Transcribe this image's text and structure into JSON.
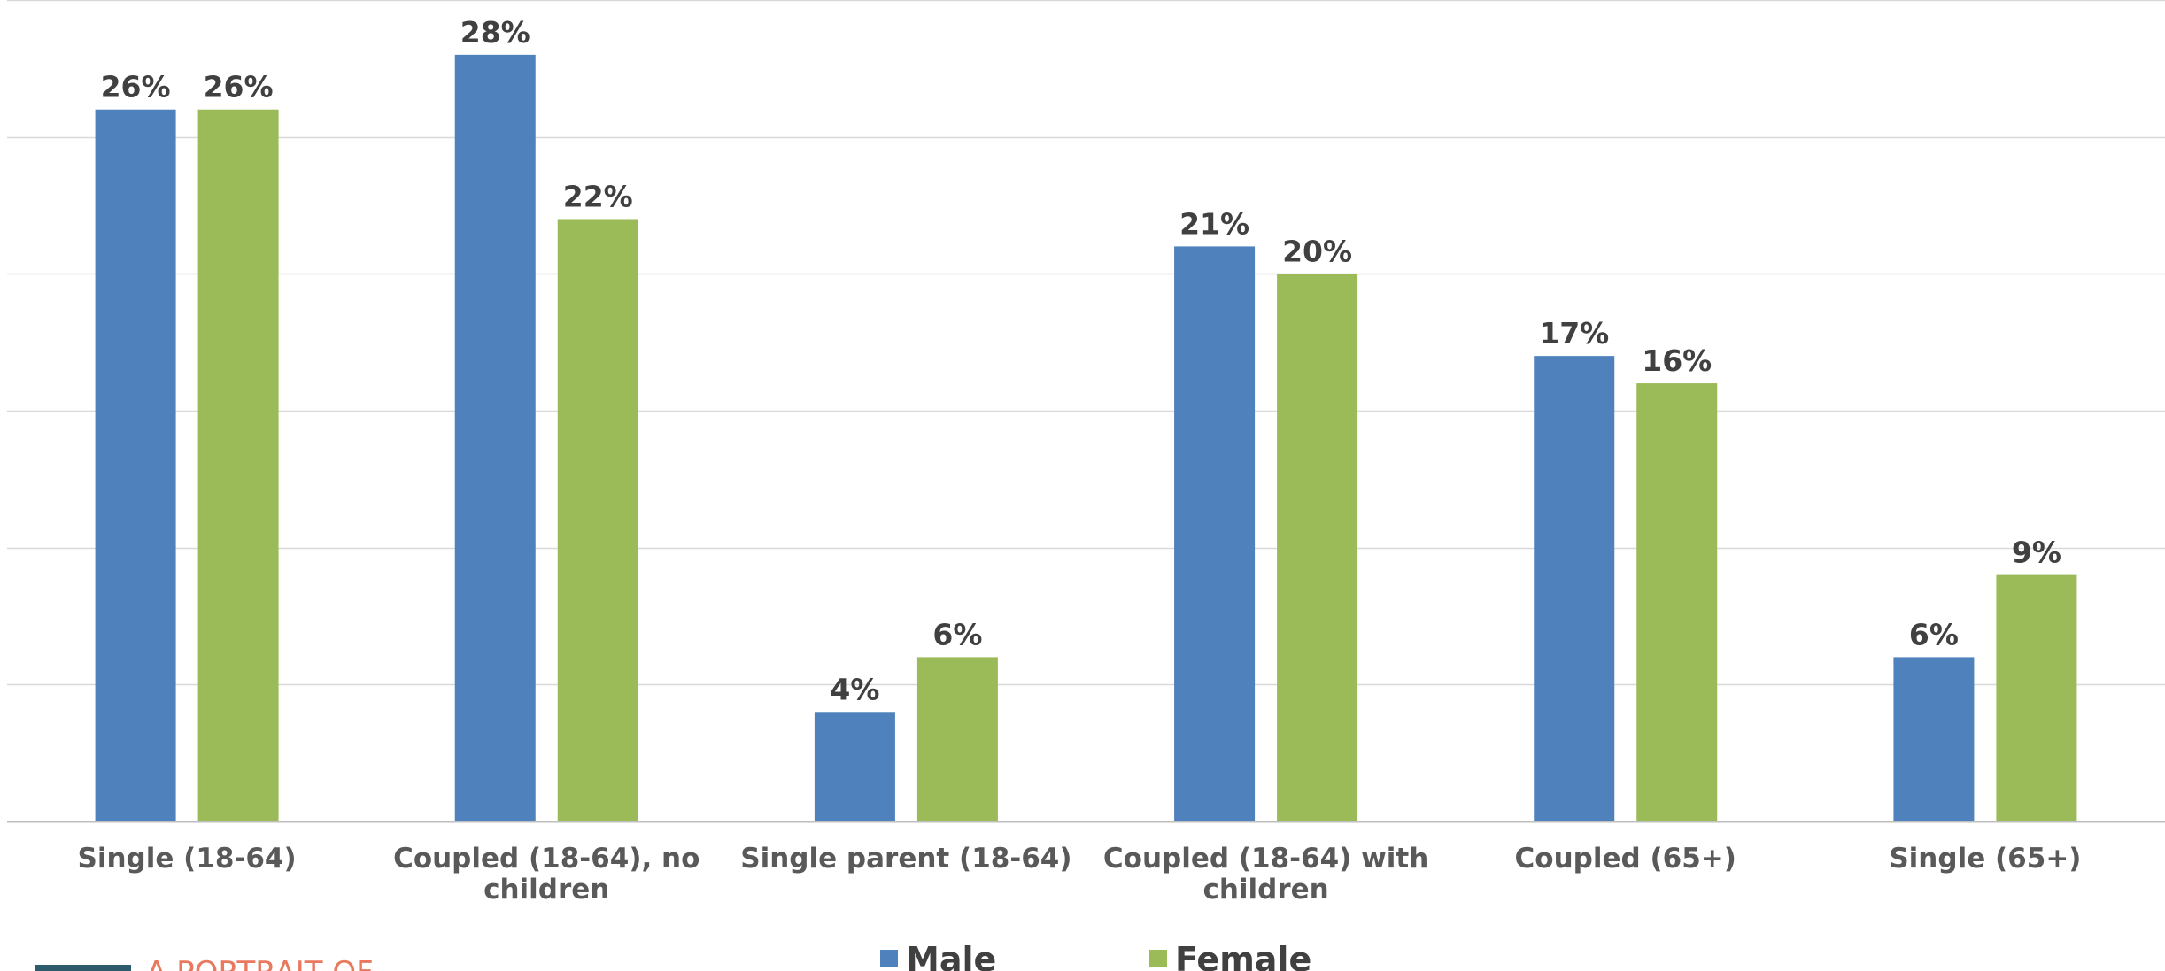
{
  "chart_data": {
    "type": "bar",
    "categories": [
      "Single (18-64)",
      "Coupled (18-64), no children",
      "Single parent (18-64)",
      "Coupled (18-64) with children",
      "Coupled (65+)",
      "Single (65+)"
    ],
    "category_lines": [
      [
        "Single (18-64)"
      ],
      [
        "Coupled (18-64), no",
        "children"
      ],
      [
        "Single parent (18-64)"
      ],
      [
        "Coupled (18-64) with",
        "children"
      ],
      [
        "Coupled (65+)"
      ],
      [
        "Single (65+)"
      ]
    ],
    "series": [
      {
        "name": "Male",
        "color": "#4f81bd",
        "values": [
          26,
          28,
          4,
          21,
          17,
          6
        ],
        "labels": [
          "26%",
          "28%",
          "4%",
          "21%",
          "17%",
          "6%"
        ]
      },
      {
        "name": "Female",
        "color": "#9bbb59",
        "values": [
          26,
          22,
          6,
          20,
          16,
          9
        ],
        "labels": [
          "26%",
          "22%",
          "6%",
          "20%",
          "16%",
          "9%"
        ]
      }
    ],
    "ylim": [
      0,
      30
    ],
    "grid": true,
    "legend_position": "bottom-center",
    "gridline_color": "#d9d9d9"
  },
  "logo": {
    "text": "A PORTRAIT OF",
    "accent_color": "#e8795f",
    "mark_color": "#2e5b6b"
  }
}
